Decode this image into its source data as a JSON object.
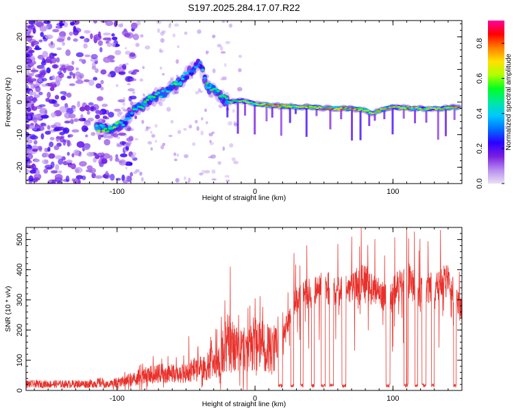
{
  "title": "S197.2025.284.17.07.R22",
  "chart_data": [
    {
      "type": "heatmap",
      "name": "spectrogram",
      "xlabel": "Height of straight line (km)",
      "ylabel": "Frequency (Hz)",
      "xlim": [
        -166,
        150
      ],
      "ylim": [
        -25,
        25
      ],
      "xticks": [
        -100,
        0,
        100
      ],
      "yticks": [
        -20,
        -10,
        0,
        10,
        20
      ],
      "grid": false,
      "colorbar": {
        "label": "Normalized spectral amplitude",
        "range": [
          0,
          0.93
        ],
        "ticks": [
          0.0,
          0.2,
          0.4,
          0.6,
          0.8
        ],
        "colormap": [
          "#e8e0f4",
          "#b78cf0",
          "#7a1fe0",
          "#2b00ff",
          "#0070ff",
          "#00c8ff",
          "#00e8a0",
          "#00ff20",
          "#b0ff00",
          "#ffe000",
          "#ff8000",
          "#ff0000",
          "#ff00a0"
        ]
      },
      "trace": [
        {
          "x": -115,
          "f": -8,
          "a": 0.55
        },
        {
          "x": -105,
          "f": -8.5,
          "a": 0.6
        },
        {
          "x": -95,
          "f": -6,
          "a": 0.45
        },
        {
          "x": -85,
          "f": -2,
          "a": 0.5
        },
        {
          "x": -75,
          "f": 1,
          "a": 0.55
        },
        {
          "x": -65,
          "f": 3,
          "a": 0.45
        },
        {
          "x": -55,
          "f": 6,
          "a": 0.6
        },
        {
          "x": -48,
          "f": 9,
          "a": 0.4
        },
        {
          "x": -40,
          "f": 12,
          "a": 0.35
        },
        {
          "x": -35,
          "f": 5,
          "a": 0.55
        },
        {
          "x": -28,
          "f": 3,
          "a": 0.5
        },
        {
          "x": -20,
          "f": 0,
          "a": 0.55
        },
        {
          "x": -10,
          "f": 0.5,
          "a": 0.6
        },
        {
          "x": 0,
          "f": -0.5,
          "a": 0.65
        },
        {
          "x": 10,
          "f": -1,
          "a": 0.85
        },
        {
          "x": 20,
          "f": -1.2,
          "a": 0.85
        },
        {
          "x": 30,
          "f": -1.5,
          "a": 0.7
        },
        {
          "x": 40,
          "f": -1.5,
          "a": 0.8
        },
        {
          "x": 50,
          "f": -1.8,
          "a": 0.75
        },
        {
          "x": 60,
          "f": -2,
          "a": 0.9
        },
        {
          "x": 70,
          "f": -2,
          "a": 0.85
        },
        {
          "x": 80,
          "f": -2.5,
          "a": 0.7
        },
        {
          "x": 85,
          "f": -3.5,
          "a": 0.75
        },
        {
          "x": 90,
          "f": -2.5,
          "a": 0.8
        },
        {
          "x": 100,
          "f": -1.5,
          "a": 0.75
        },
        {
          "x": 110,
          "f": -1.8,
          "a": 0.8
        },
        {
          "x": 120,
          "f": -2,
          "a": 0.75
        },
        {
          "x": 130,
          "f": -2,
          "a": 0.7
        },
        {
          "x": 140,
          "f": -1.8,
          "a": 0.75
        },
        {
          "x": 148,
          "f": -1.5,
          "a": 0.8
        }
      ]
    },
    {
      "type": "line",
      "name": "snr",
      "xlabel": "Height of straight line (km)",
      "ylabel": "SNR (10 * v/v)",
      "xlim": [
        -166,
        150
      ],
      "ylim": [
        0,
        540
      ],
      "xticks": [
        -100,
        0,
        100
      ],
      "yticks": [
        0,
        100,
        200,
        300,
        400,
        500
      ],
      "grid": false,
      "color": "#e8302a",
      "envelope": [
        {
          "x": -166,
          "y": 20
        },
        {
          "x": -140,
          "y": 20
        },
        {
          "x": -120,
          "y": 22
        },
        {
          "x": -105,
          "y": 35
        },
        {
          "x": -95,
          "y": 50
        },
        {
          "x": -85,
          "y": 70
        },
        {
          "x": -75,
          "y": 85
        },
        {
          "x": -65,
          "y": 90
        },
        {
          "x": -55,
          "y": 85
        },
        {
          "x": -45,
          "y": 110
        },
        {
          "x": -35,
          "y": 130
        },
        {
          "x": -25,
          "y": 170
        },
        {
          "x": -20,
          "y": 260
        },
        {
          "x": -10,
          "y": 200
        },
        {
          "x": 0,
          "y": 250
        },
        {
          "x": 10,
          "y": 230
        },
        {
          "x": 20,
          "y": 200
        },
        {
          "x": 28,
          "y": 340
        },
        {
          "x": 40,
          "y": 380
        },
        {
          "x": 50,
          "y": 400
        },
        {
          "x": 60,
          "y": 380
        },
        {
          "x": 70,
          "y": 400
        },
        {
          "x": 80,
          "y": 420
        },
        {
          "x": 85,
          "y": 390
        },
        {
          "x": 95,
          "y": 360
        },
        {
          "x": 100,
          "y": 380
        },
        {
          "x": 110,
          "y": 430
        },
        {
          "x": 120,
          "y": 380
        },
        {
          "x": 130,
          "y": 400
        },
        {
          "x": 140,
          "y": 420
        },
        {
          "x": 150,
          "y": 300
        }
      ],
      "spikes": [
        {
          "x": -48,
          "y": 180
        },
        {
          "x": -18,
          "y": 410
        },
        {
          "x": -12,
          "y": 250
        },
        {
          "x": 110,
          "y": 540
        }
      ],
      "dropouts": [
        {
          "from": 17,
          "to": 20
        },
        {
          "from": 26,
          "to": 28
        },
        {
          "from": 33,
          "to": 35
        },
        {
          "from": 41,
          "to": 43
        },
        {
          "from": 48,
          "to": 51
        },
        {
          "from": 54,
          "to": 57
        },
        {
          "from": 63,
          "to": 66
        },
        {
          "from": 95,
          "to": 98
        },
        {
          "from": 108,
          "to": 111
        },
        {
          "from": 116,
          "to": 118
        },
        {
          "from": 121,
          "to": 124
        },
        {
          "from": 128,
          "to": 130
        },
        {
          "from": 144,
          "to": 146
        }
      ]
    }
  ]
}
